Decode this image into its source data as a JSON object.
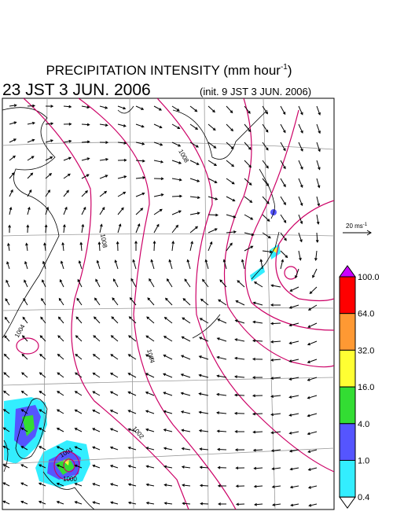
{
  "header": {
    "title_main": "PRECIPITATION INTENSITY (mm hour",
    "title_sup": "-1",
    "title_end": ")",
    "valid_time": "23 JST 3 JUN. 2006",
    "init_time": "(init. 9 JST 3 JUN. 2006)"
  },
  "wind_scale": {
    "label_main": "20 ms",
    "label_sup": "-1"
  },
  "colorbar": {
    "labels": [
      "100.0",
      "64.0",
      "32.0",
      "16.0",
      "4.0",
      "1.0",
      "0.4"
    ],
    "colors": [
      "#ff0000",
      "#ff9933",
      "#ffff33",
      "#33dd33",
      "#5555ff",
      "#33eeff"
    ],
    "over_color": "#cc00ff",
    "under_color": "#ffffff"
  },
  "contour_labels": [
    "1008",
    "1008",
    "1004",
    "1004",
    "1002",
    "1001",
    "1000"
  ]
}
